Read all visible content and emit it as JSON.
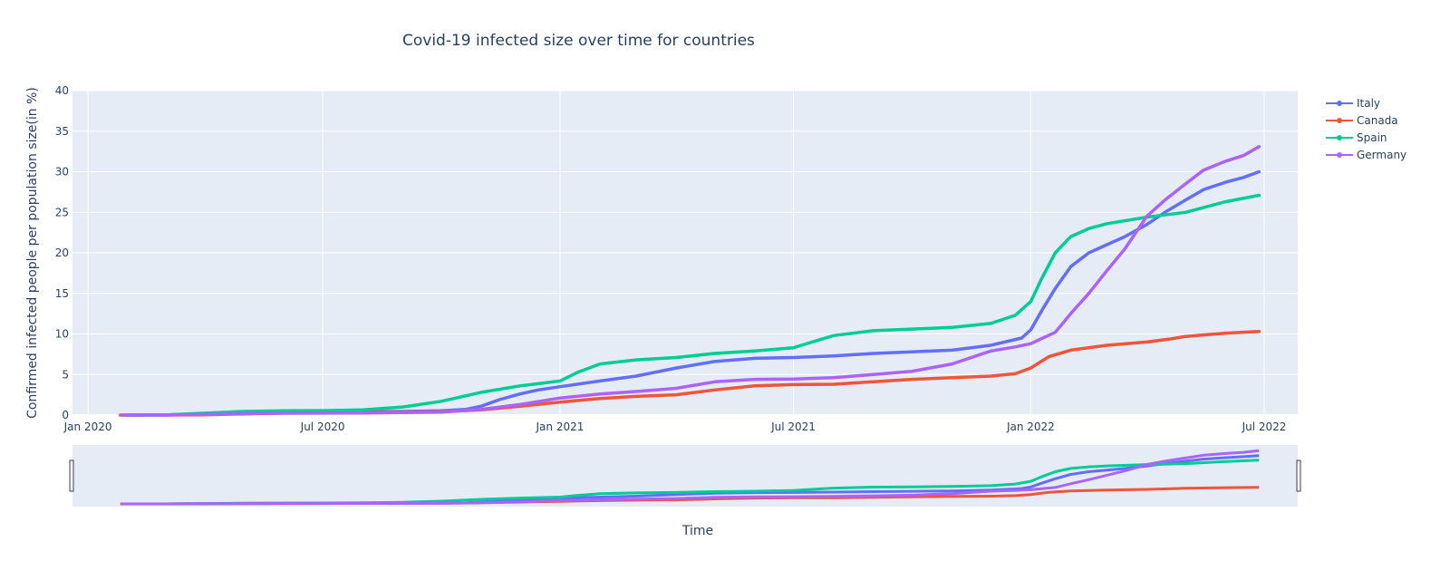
{
  "chart_data": {
    "type": "line",
    "title": "Covid-19 infected size over time for countries",
    "xlabel": "Time",
    "ylabel": "Confirmed infected people per population size(in %)",
    "ylim": [
      0,
      40
    ],
    "xlim": [
      "2019-12-20",
      "2022-07-27"
    ],
    "xticks": [
      {
        "date": "2020-01-01",
        "label": "Jan 2020"
      },
      {
        "date": "2020-07-01",
        "label": "Jul 2020"
      },
      {
        "date": "2021-01-01",
        "label": "Jan 2021"
      },
      {
        "date": "2021-07-01",
        "label": "Jul 2021"
      },
      {
        "date": "2022-01-01",
        "label": "Jan 2022"
      },
      {
        "date": "2022-07-01",
        "label": "Jul 2022"
      }
    ],
    "yticks": [
      0,
      5,
      10,
      15,
      20,
      25,
      30,
      35,
      40
    ],
    "grid": true,
    "legend_position": "top-right",
    "range_slider": true,
    "series": [
      {
        "name": "Italy",
        "color": "#636efa",
        "points": [
          [
            "2020-01-31",
            0
          ],
          [
            "2020-03-01",
            0.01
          ],
          [
            "2020-04-01",
            0.18
          ],
          [
            "2020-05-01",
            0.34
          ],
          [
            "2020-06-01",
            0.39
          ],
          [
            "2020-07-01",
            0.4
          ],
          [
            "2020-08-01",
            0.41
          ],
          [
            "2020-09-01",
            0.45
          ],
          [
            "2020-10-01",
            0.53
          ],
          [
            "2020-10-20",
            0.7
          ],
          [
            "2020-11-01",
            1.1
          ],
          [
            "2020-11-15",
            1.9
          ],
          [
            "2020-12-01",
            2.6
          ],
          [
            "2020-12-15",
            3.1
          ],
          [
            "2021-01-01",
            3.5
          ],
          [
            "2021-02-01",
            4.2
          ],
          [
            "2021-03-01",
            4.8
          ],
          [
            "2021-04-01",
            5.8
          ],
          [
            "2021-05-01",
            6.6
          ],
          [
            "2021-06-01",
            7.0
          ],
          [
            "2021-07-01",
            7.1
          ],
          [
            "2021-08-01",
            7.3
          ],
          [
            "2021-09-01",
            7.6
          ],
          [
            "2021-10-01",
            7.8
          ],
          [
            "2021-11-01",
            8.0
          ],
          [
            "2021-12-01",
            8.6
          ],
          [
            "2021-12-25",
            9.5
          ],
          [
            "2022-01-01",
            10.5
          ],
          [
            "2022-01-10",
            13.0
          ],
          [
            "2022-01-20",
            15.6
          ],
          [
            "2022-02-01",
            18.3
          ],
          [
            "2022-02-15",
            20.0
          ],
          [
            "2022-03-01",
            21.0
          ],
          [
            "2022-03-15",
            22.0
          ],
          [
            "2022-04-01",
            23.5
          ],
          [
            "2022-04-15",
            25.0
          ],
          [
            "2022-05-01",
            26.5
          ],
          [
            "2022-05-15",
            27.8
          ],
          [
            "2022-06-01",
            28.7
          ],
          [
            "2022-06-15",
            29.3
          ],
          [
            "2022-06-27",
            30.0
          ]
        ]
      },
      {
        "name": "Canada",
        "color": "#ef553b",
        "points": [
          [
            "2020-01-26",
            0
          ],
          [
            "2020-03-01",
            0
          ],
          [
            "2020-04-01",
            0.03
          ],
          [
            "2020-05-01",
            0.15
          ],
          [
            "2020-06-01",
            0.25
          ],
          [
            "2020-07-01",
            0.28
          ],
          [
            "2020-08-01",
            0.32
          ],
          [
            "2020-09-01",
            0.36
          ],
          [
            "2020-10-01",
            0.42
          ],
          [
            "2020-11-01",
            0.65
          ],
          [
            "2020-12-01",
            1.1
          ],
          [
            "2021-01-01",
            1.6
          ],
          [
            "2021-02-01",
            2.05
          ],
          [
            "2021-03-01",
            2.3
          ],
          [
            "2021-04-01",
            2.5
          ],
          [
            "2021-05-01",
            3.1
          ],
          [
            "2021-06-01",
            3.6
          ],
          [
            "2021-07-01",
            3.75
          ],
          [
            "2021-08-01",
            3.8
          ],
          [
            "2021-09-01",
            4.1
          ],
          [
            "2021-10-01",
            4.4
          ],
          [
            "2021-11-01",
            4.6
          ],
          [
            "2021-12-01",
            4.8
          ],
          [
            "2021-12-20",
            5.1
          ],
          [
            "2022-01-01",
            5.8
          ],
          [
            "2022-01-15",
            7.2
          ],
          [
            "2022-02-01",
            8.0
          ],
          [
            "2022-03-01",
            8.6
          ],
          [
            "2022-04-01",
            9.0
          ],
          [
            "2022-04-20",
            9.4
          ],
          [
            "2022-05-01",
            9.7
          ],
          [
            "2022-06-01",
            10.1
          ],
          [
            "2022-06-27",
            10.3
          ]
        ]
      },
      {
        "name": "Spain",
        "color": "#00cc96",
        "points": [
          [
            "2020-02-01",
            0
          ],
          [
            "2020-03-01",
            0.01
          ],
          [
            "2020-04-01",
            0.23
          ],
          [
            "2020-05-01",
            0.45
          ],
          [
            "2020-06-01",
            0.52
          ],
          [
            "2020-07-01",
            0.55
          ],
          [
            "2020-08-01",
            0.65
          ],
          [
            "2020-09-01",
            1.0
          ],
          [
            "2020-10-01",
            1.7
          ],
          [
            "2020-11-01",
            2.8
          ],
          [
            "2020-12-01",
            3.6
          ],
          [
            "2021-01-01",
            4.2
          ],
          [
            "2021-01-15",
            5.3
          ],
          [
            "2021-02-01",
            6.3
          ],
          [
            "2021-03-01",
            6.8
          ],
          [
            "2021-04-01",
            7.1
          ],
          [
            "2021-05-01",
            7.6
          ],
          [
            "2021-06-01",
            7.9
          ],
          [
            "2021-07-01",
            8.3
          ],
          [
            "2021-08-01",
            9.8
          ],
          [
            "2021-09-01",
            10.4
          ],
          [
            "2021-10-01",
            10.6
          ],
          [
            "2021-11-01",
            10.8
          ],
          [
            "2021-12-01",
            11.3
          ],
          [
            "2021-12-20",
            12.3
          ],
          [
            "2022-01-01",
            14.0
          ],
          [
            "2022-01-10",
            17.0
          ],
          [
            "2022-01-20",
            20.0
          ],
          [
            "2022-02-01",
            22.0
          ],
          [
            "2022-02-15",
            23.0
          ],
          [
            "2022-03-01",
            23.6
          ],
          [
            "2022-04-01",
            24.4
          ],
          [
            "2022-05-01",
            25.0
          ],
          [
            "2022-06-01",
            26.3
          ],
          [
            "2022-06-27",
            27.1
          ]
        ]
      },
      {
        "name": "Germany",
        "color": "#ab63fa",
        "points": [
          [
            "2020-01-27",
            0
          ],
          [
            "2020-03-01",
            0
          ],
          [
            "2020-04-01",
            0.09
          ],
          [
            "2020-05-01",
            0.19
          ],
          [
            "2020-06-01",
            0.22
          ],
          [
            "2020-07-01",
            0.24
          ],
          [
            "2020-08-01",
            0.26
          ],
          [
            "2020-09-01",
            0.3
          ],
          [
            "2020-10-01",
            0.36
          ],
          [
            "2020-11-01",
            0.7
          ],
          [
            "2020-12-01",
            1.3
          ],
          [
            "2021-01-01",
            2.1
          ],
          [
            "2021-02-01",
            2.6
          ],
          [
            "2021-03-01",
            2.9
          ],
          [
            "2021-04-01",
            3.3
          ],
          [
            "2021-05-01",
            4.1
          ],
          [
            "2021-06-01",
            4.4
          ],
          [
            "2021-07-01",
            4.45
          ],
          [
            "2021-08-01",
            4.6
          ],
          [
            "2021-09-01",
            5.0
          ],
          [
            "2021-10-01",
            5.4
          ],
          [
            "2021-11-01",
            6.3
          ],
          [
            "2021-12-01",
            7.9
          ],
          [
            "2021-12-20",
            8.4
          ],
          [
            "2022-01-01",
            8.8
          ],
          [
            "2022-01-20",
            10.2
          ],
          [
            "2022-02-01",
            12.5
          ],
          [
            "2022-02-15",
            15.0
          ],
          [
            "2022-03-01",
            17.8
          ],
          [
            "2022-03-15",
            20.5
          ],
          [
            "2022-04-01",
            24.5
          ],
          [
            "2022-04-15",
            26.5
          ],
          [
            "2022-05-01",
            28.5
          ],
          [
            "2022-05-15",
            30.2
          ],
          [
            "2022-06-01",
            31.3
          ],
          [
            "2022-06-15",
            32.0
          ],
          [
            "2022-06-27",
            33.1
          ]
        ]
      }
    ]
  }
}
